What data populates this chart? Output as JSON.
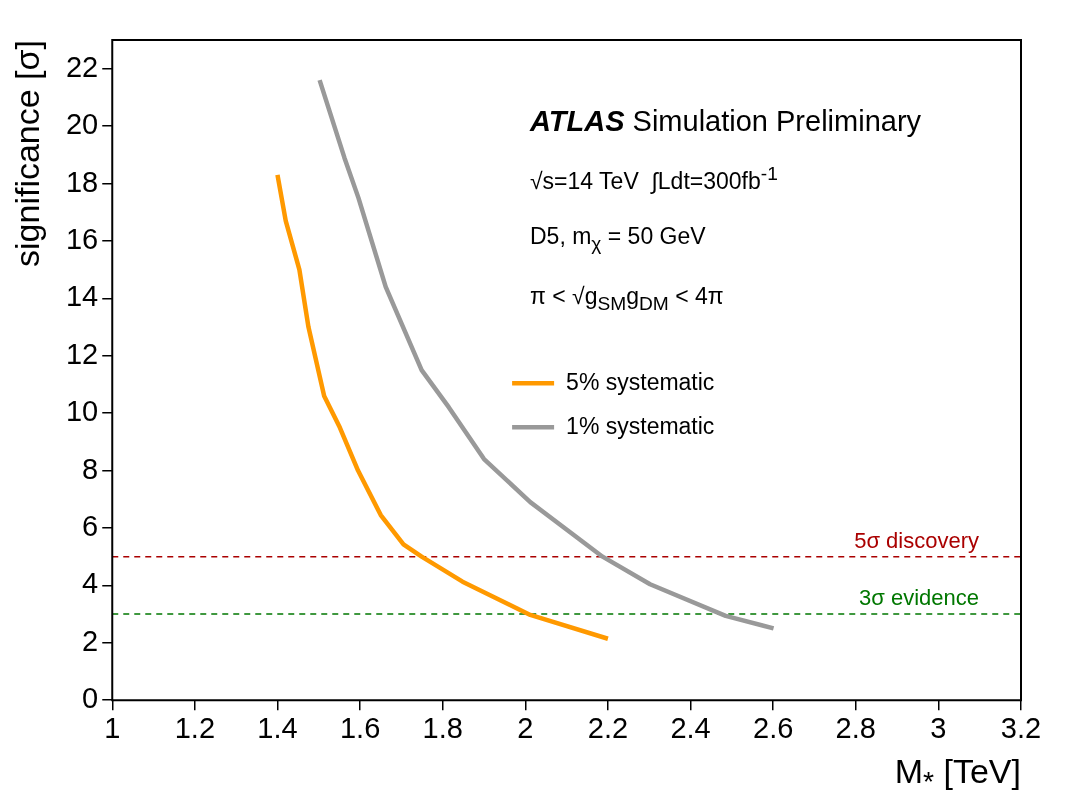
{
  "chart_data": {
    "type": "line",
    "xlabel": "M$_{*}$ [TeV]",
    "ylabel": "significance [σ]",
    "annotations": [
      "ATLAS Simulation Preliminary",
      "√s=14 TeV  ∫Ldt=300fb$^{-1}$",
      "D5, m$_{χ}$ = 50 GeV",
      "π < √g$_{SM}$g$_{DM}$ < 4π"
    ],
    "series": [
      {
        "name": "5% systematic",
        "color": "#ff9900",
        "x": [
          1.4,
          1.42,
          1.453,
          1.475,
          1.513,
          1.551,
          1.595,
          1.65,
          1.705,
          1.749,
          1.848,
          2.012,
          2.2
        ],
        "values": [
          18.3,
          16.7,
          15.0,
          13.0,
          10.6,
          9.5,
          8.0,
          6.45,
          5.43,
          5.0,
          4.13,
          2.97,
          2.14
        ]
      },
      {
        "name": "1% systematic",
        "color": "#999999",
        "x": [
          1.502,
          1.562,
          1.596,
          1.662,
          1.749,
          1.815,
          1.9,
          2.012,
          2.187,
          2.302,
          2.485,
          2.601
        ],
        "values": [
          21.6,
          18.9,
          17.5,
          14.4,
          11.5,
          10.2,
          8.4,
          6.9,
          5.0,
          4.04,
          2.94,
          2.5
        ]
      }
    ],
    "xlim": [
      1,
      3.2
    ],
    "xticks": [
      1,
      1.2,
      1.4,
      1.6,
      1.8,
      2,
      2.2,
      2.4,
      2.6,
      2.8,
      3,
      3.2
    ],
    "ylim": [
      0,
      23
    ],
    "yticks": [
      0,
      2,
      4,
      6,
      8,
      10,
      12,
      14,
      16,
      18,
      20,
      22
    ],
    "ref_lines": [
      {
        "axis": "y",
        "value": 5,
        "label": "5σ discovery",
        "color": "#aa0000",
        "line_style": "dashed"
      },
      {
        "axis": "y",
        "value": 3,
        "label": "3σ evidence",
        "color": "#007700",
        "line_style": "dashed"
      }
    ],
    "legend": "right",
    "grid": false,
    "marker": "none",
    "line_style": "solid"
  }
}
